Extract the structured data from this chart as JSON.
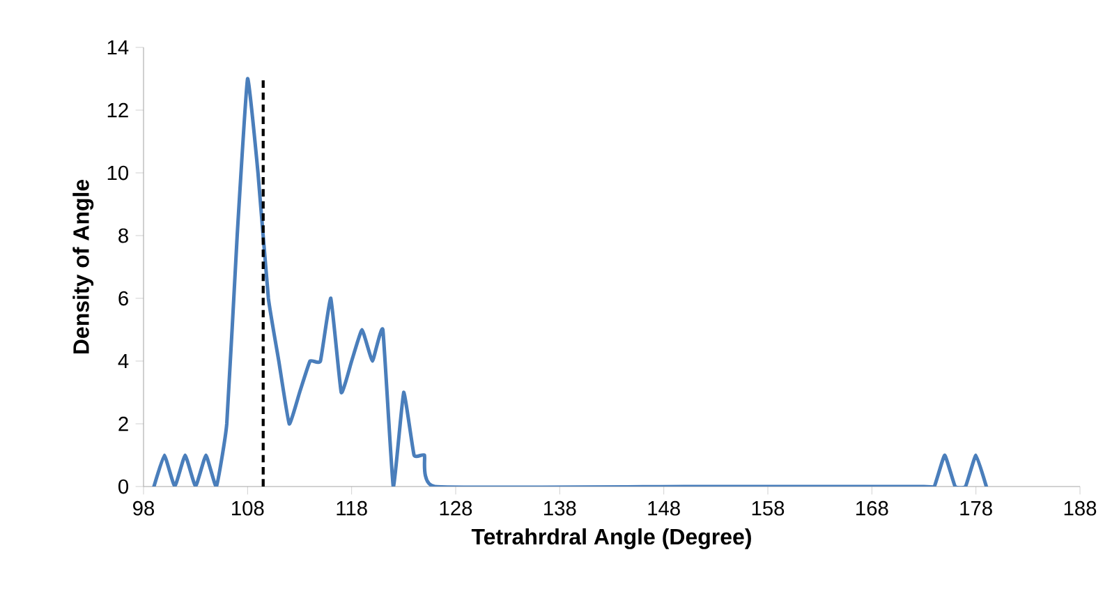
{
  "chart_data": {
    "type": "line",
    "xlabel": "Tetrahrdral Angle (Degree)",
    "ylabel": "Density of Angle",
    "series": [
      {
        "color": "#4a7ebb",
        "x": [
          99,
          100,
          101,
          102,
          103,
          104,
          105,
          106,
          107,
          108,
          109,
          110,
          111,
          112,
          113,
          114,
          115,
          116,
          117,
          118,
          119,
          120,
          121,
          122,
          123,
          124,
          125,
          126,
          150,
          173,
          174,
          175,
          176,
          177,
          178,
          179
        ],
        "values": [
          0,
          1,
          0,
          1,
          0,
          1,
          0,
          2,
          8,
          13,
          10,
          6,
          4,
          2,
          3,
          4,
          4,
          6,
          3,
          4,
          5,
          4,
          5,
          0,
          3,
          1,
          1,
          0,
          0,
          0,
          0,
          1,
          0,
          0,
          1,
          0
        ]
      }
    ],
    "xlim": [
      98,
      188
    ],
    "ylim": [
      0,
      14
    ],
    "xticks": [
      98,
      108,
      118,
      128,
      138,
      148,
      158,
      168,
      178,
      188
    ],
    "yticks": [
      0,
      2,
      4,
      6,
      8,
      10,
      12,
      14
    ],
    "grid": false,
    "marker": "none",
    "line_style": "solid",
    "ref_lines": [
      {
        "axis": "x",
        "value": 109.5,
        "color": "#000000",
        "line_style": "dashed"
      }
    ]
  }
}
